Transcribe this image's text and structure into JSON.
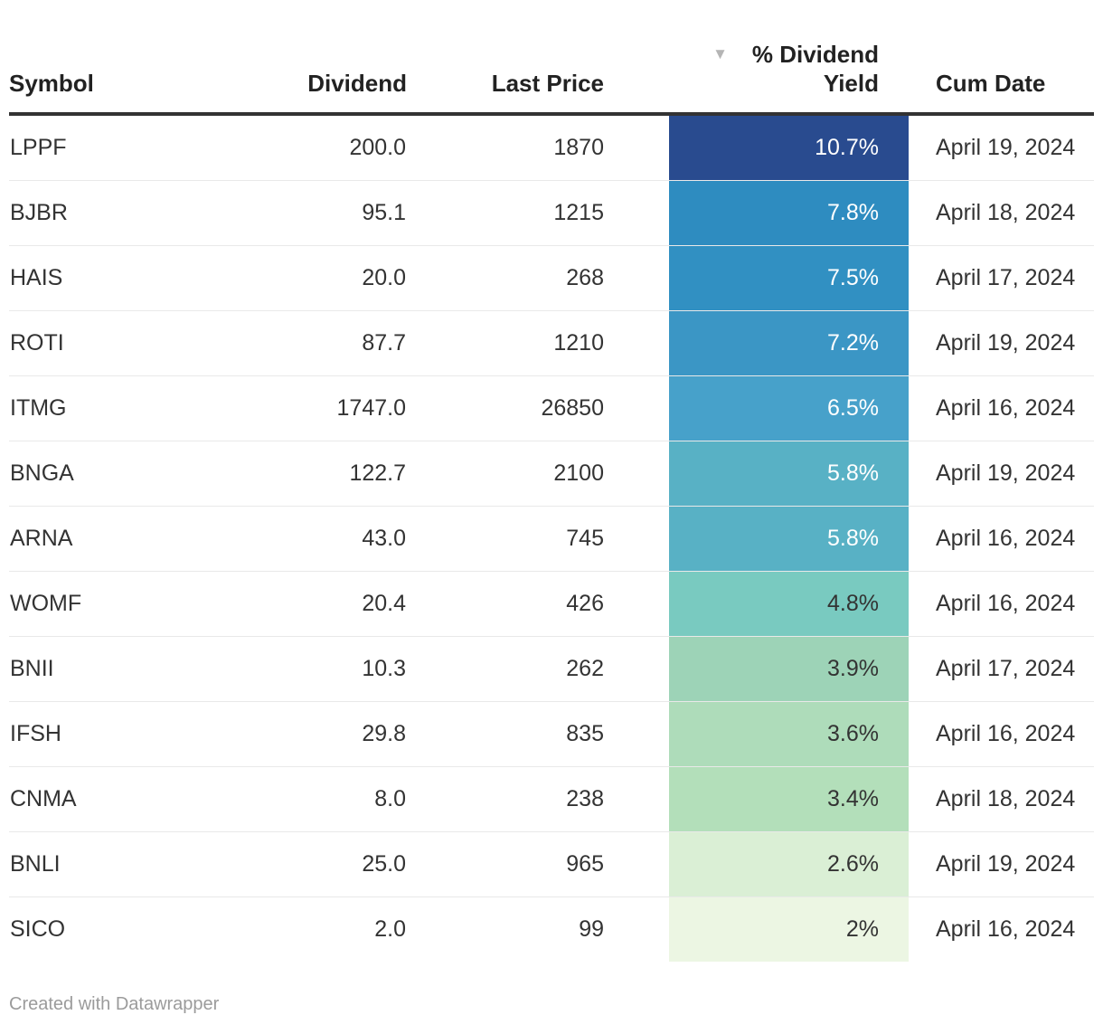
{
  "table": {
    "sort_icon": "▼",
    "columns": [
      {
        "id": "symbol",
        "label": "Symbol"
      },
      {
        "id": "dividend",
        "label": "Dividend"
      },
      {
        "id": "last_price",
        "label": "Last Price"
      },
      {
        "id": "yield",
        "label": "% Dividend Yield",
        "sorted": "desc"
      },
      {
        "id": "cum_date",
        "label": "Cum Date"
      }
    ],
    "rows": [
      {
        "symbol": "LPPF",
        "dividend": "200.0",
        "last_price": "1870",
        "yield": "10.7%",
        "cum_date": "April 19, 2024",
        "yield_bg": "#294b8f",
        "yield_text": "#ffffff"
      },
      {
        "symbol": "BJBR",
        "dividend": "95.1",
        "last_price": "1215",
        "yield": "7.8%",
        "cum_date": "April 18, 2024",
        "yield_bg": "#2e8cc0",
        "yield_text": "#ffffff"
      },
      {
        "symbol": "HAIS",
        "dividend": "20.0",
        "last_price": "268",
        "yield": "7.5%",
        "cum_date": "April 17, 2024",
        "yield_bg": "#3190c2",
        "yield_text": "#ffffff"
      },
      {
        "symbol": "ROTI",
        "dividend": "87.7",
        "last_price": "1210",
        "yield": "7.2%",
        "cum_date": "April 19, 2024",
        "yield_bg": "#3b96c5",
        "yield_text": "#ffffff"
      },
      {
        "symbol": "ITMG",
        "dividend": "1747.0",
        "last_price": "26850",
        "yield": "6.5%",
        "cum_date": "April 16, 2024",
        "yield_bg": "#47a1ca",
        "yield_text": "#ffffff"
      },
      {
        "symbol": "BNGA",
        "dividend": "122.7",
        "last_price": "2100",
        "yield": "5.8%",
        "cum_date": "April 19, 2024",
        "yield_bg": "#58b1c5",
        "yield_text": "#ffffff"
      },
      {
        "symbol": "ARNA",
        "dividend": "43.0",
        "last_price": "745",
        "yield": "5.8%",
        "cum_date": "April 16, 2024",
        "yield_bg": "#58b1c5",
        "yield_text": "#ffffff"
      },
      {
        "symbol": "WOMF",
        "dividend": "20.4",
        "last_price": "426",
        "yield": "4.8%",
        "cum_date": "April 16, 2024",
        "yield_bg": "#79cac0",
        "yield_text": "#333333"
      },
      {
        "symbol": "BNII",
        "dividend": "10.3",
        "last_price": "262",
        "yield": "3.9%",
        "cum_date": "April 17, 2024",
        "yield_bg": "#9dd3b7",
        "yield_text": "#333333"
      },
      {
        "symbol": "IFSH",
        "dividend": "29.8",
        "last_price": "835",
        "yield": "3.6%",
        "cum_date": "April 16, 2024",
        "yield_bg": "#aedcba",
        "yield_text": "#333333"
      },
      {
        "symbol": "CNMA",
        "dividend": "8.0",
        "last_price": "238",
        "yield": "3.4%",
        "cum_date": "April 18, 2024",
        "yield_bg": "#b3dfba",
        "yield_text": "#333333"
      },
      {
        "symbol": "BNLI",
        "dividend": "25.0",
        "last_price": "965",
        "yield": "2.6%",
        "cum_date": "April 19, 2024",
        "yield_bg": "#daefd5",
        "yield_text": "#333333"
      },
      {
        "symbol": "SICO",
        "dividend": "2.0",
        "last_price": "99",
        "yield": "2%",
        "cum_date": "April 16, 2024",
        "yield_bg": "#ecf6e3",
        "yield_text": "#333333"
      }
    ]
  },
  "footer": {
    "credit": "Created with Datawrapper"
  },
  "colors": {
    "header_border": "#333333",
    "row_border": "#e9e9e9",
    "header_text": "#222222",
    "body_text": "#333333",
    "credit_text": "#9b9b9b",
    "sort_icon": "#b5b5b5"
  },
  "chart_data": {
    "type": "table",
    "columns": [
      "Symbol",
      "Dividend",
      "Last Price",
      "% Dividend Yield",
      "Cum Date"
    ],
    "rows": [
      [
        "LPPF",
        200.0,
        1870,
        10.7,
        "April 19, 2024"
      ],
      [
        "BJBR",
        95.1,
        1215,
        7.8,
        "April 18, 2024"
      ],
      [
        "HAIS",
        20.0,
        268,
        7.5,
        "April 17, 2024"
      ],
      [
        "ROTI",
        87.7,
        1210,
        7.2,
        "April 19, 2024"
      ],
      [
        "ITMG",
        1747.0,
        26850,
        6.5,
        "April 16, 2024"
      ],
      [
        "BNGA",
        122.7,
        2100,
        5.8,
        "April 19, 2024"
      ],
      [
        "ARNA",
        43.0,
        745,
        5.8,
        "April 16, 2024"
      ],
      [
        "WOMF",
        20.4,
        426,
        4.8,
        "April 16, 2024"
      ],
      [
        "BNII",
        10.3,
        262,
        3.9,
        "April 17, 2024"
      ],
      [
        "IFSH",
        29.8,
        835,
        3.6,
        "April 16, 2024"
      ],
      [
        "CNMA",
        8.0,
        238,
        3.4,
        "April 18, 2024"
      ],
      [
        "BNLI",
        25.0,
        965,
        2.6,
        "April 19, 2024"
      ],
      [
        "SICO",
        2.0,
        99,
        2.0,
        "April 16, 2024"
      ]
    ],
    "sort": {
      "column": "% Dividend Yield",
      "direction": "desc"
    },
    "heatmap_column": "% Dividend Yield",
    "heatmap_scale": [
      "#ecf6e3",
      "#294b8f"
    ]
  }
}
